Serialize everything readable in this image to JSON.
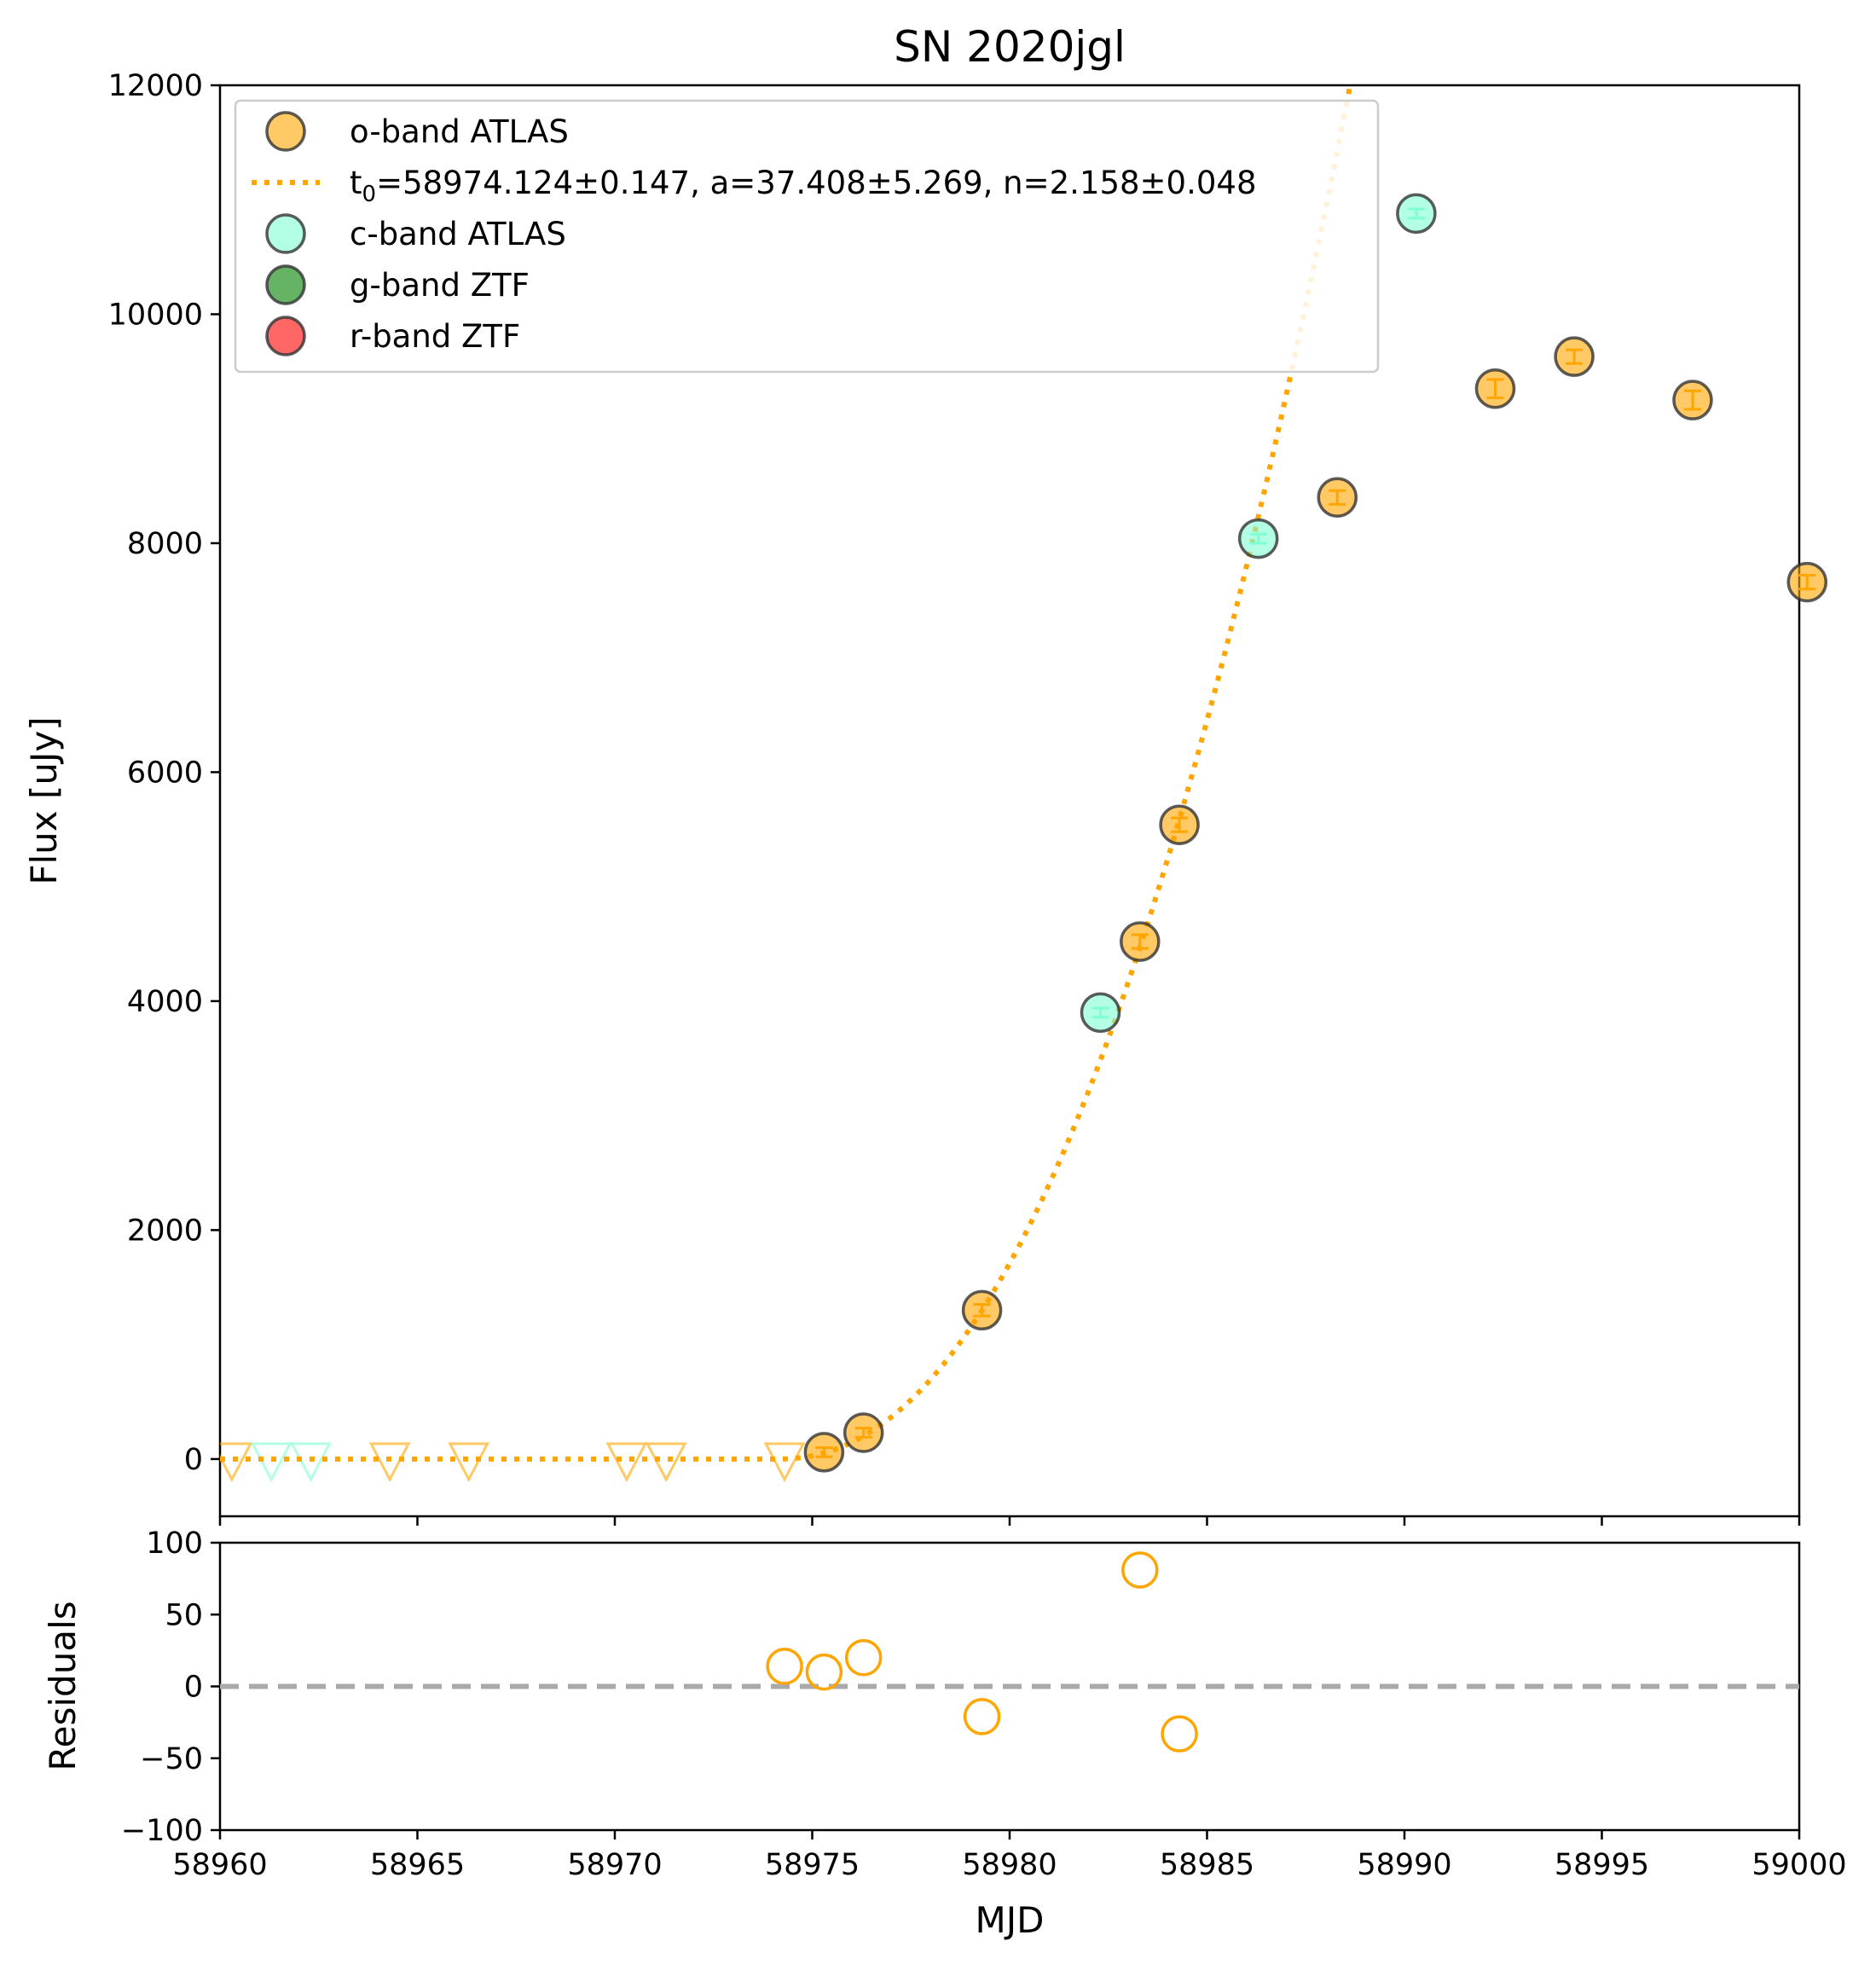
{
  "chart_data": [
    {
      "panel": "main",
      "type": "scatter",
      "title": "SN 2020jgl",
      "xlabel": "",
      "ylabel": "Flux [uJy]",
      "xlim": [
        58960,
        59000
      ],
      "ylim": [
        -500,
        12000
      ],
      "yticks": [
        0,
        2000,
        4000,
        6000,
        8000,
        10000,
        12000
      ],
      "grid": false,
      "legend_position": "top-left",
      "colors": {
        "o_band": "#FFA500",
        "c_band": "#7FFFD4",
        "g_band": "#008000",
        "r_band": "#FF0000",
        "fit": "#FFA500"
      },
      "legend": [
        {
          "key": "o_band",
          "label": "o-band ATLAS",
          "marker": "circle"
        },
        {
          "key": "fit",
          "label_prefix": "t",
          "label_sub": "0",
          "label_rest": "=58974.124±0.147, a=37.408±5.269, n=2.158±0.048",
          "marker": "dotted-line"
        },
        {
          "key": "c_band",
          "label": "c-band ATLAS",
          "marker": "circle"
        },
        {
          "key": "g_band",
          "label": "g-band ZTF",
          "marker": "circle"
        },
        {
          "key": "r_band",
          "label": "r-band ZTF",
          "marker": "circle"
        }
      ],
      "series": [
        {
          "name": "o-band ATLAS",
          "color_key": "o_band",
          "marker": "circle",
          "points": [
            {
              "x": 58975.3,
              "y": 60,
              "err": 40
            },
            {
              "x": 58976.3,
              "y": 230,
              "err": 40
            },
            {
              "x": 58979.3,
              "y": 1300,
              "err": 50
            },
            {
              "x": 58983.3,
              "y": 4520,
              "err": 60
            },
            {
              "x": 58984.3,
              "y": 5540,
              "err": 60
            },
            {
              "x": 58988.3,
              "y": 8400,
              "err": 60
            },
            {
              "x": 58992.3,
              "y": 9350,
              "err": 80
            },
            {
              "x": 58994.3,
              "y": 9630,
              "err": 60
            },
            {
              "x": 58997.3,
              "y": 9250,
              "err": 80
            },
            {
              "x": 59000.2,
              "y": 7660,
              "err": 60
            }
          ]
        },
        {
          "name": "c-band ATLAS",
          "color_key": "c_band",
          "marker": "circle",
          "points": [
            {
              "x": 58982.3,
              "y": 3900,
              "err": 40
            },
            {
              "x": 58986.3,
              "y": 8040,
              "err": 40
            },
            {
              "x": 58990.3,
              "y": 10880,
              "err": 40
            }
          ]
        }
      ],
      "upper_limits": [
        {
          "color_key": "o_band",
          "x": [
            58960.3,
            58964.3,
            58966.3,
            58970.3,
            58971.3,
            58974.3
          ],
          "y": [
            0,
            0,
            0,
            0,
            0,
            0
          ]
        },
        {
          "color_key": "c_band",
          "x": [
            58961.3,
            58962.3
          ],
          "y": [
            0,
            0
          ]
        }
      ],
      "fit": {
        "t0": 58974.124,
        "a": 37.408,
        "n": 2.158,
        "style": "dotted"
      }
    },
    {
      "panel": "residuals",
      "type": "scatter",
      "xlabel": "MJD",
      "ylabel": "Residuals",
      "xlim": [
        58960,
        59000
      ],
      "ylim": [
        -100,
        100
      ],
      "xticks": [
        58960,
        58965,
        58970,
        58975,
        58980,
        58985,
        58990,
        58995,
        59000
      ],
      "yticks": [
        -100,
        -50,
        0,
        50,
        100
      ],
      "zero_line": {
        "y": 0,
        "style": "dashed",
        "color": "#AAAAAA"
      },
      "series": [
        {
          "name": "o-band ATLAS",
          "color_key": "o_band",
          "marker": "open-circle",
          "points": [
            {
              "x": 58974.3,
              "y": 14
            },
            {
              "x": 58975.3,
              "y": 10
            },
            {
              "x": 58976.3,
              "y": 20
            },
            {
              "x": 58979.3,
              "y": -21
            },
            {
              "x": 58983.3,
              "y": 81
            },
            {
              "x": 58984.3,
              "y": -33
            }
          ]
        }
      ]
    }
  ]
}
